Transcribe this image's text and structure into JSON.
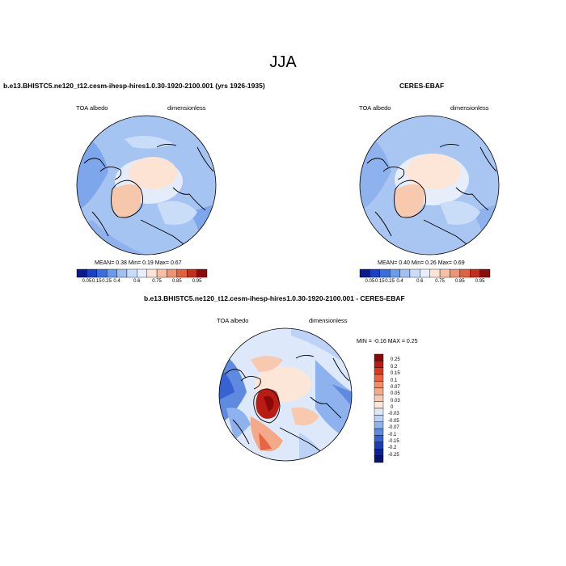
{
  "season": "JJA",
  "panels": {
    "model": {
      "title": "b.e13.BHISTC5.ne120_t12.cesm-ihesp-hires1.0.30-1920-2100.001 (yrs 1926-1935)",
      "variable": "TOA albedo",
      "units": "dimensionless",
      "stats": "MEAN=  0.38  Min=  0.19  Max=  0.67"
    },
    "obs": {
      "title": "CERES-EBAF",
      "variable": "TOA albedo",
      "units": "dimensionless",
      "stats": "MEAN=  0.40  Min=  0.26  Max=  0.69"
    },
    "diff": {
      "title": "b.e13.BHISTC5.ne120_t12.cesm-ihesp-hires1.0.30-1920-2100.001 - CERES-EBAF",
      "variable": "TOA albedo",
      "units": "dimensionless",
      "stats": "MIN =  -0.16 MAX =   0.25"
    }
  },
  "colorbar_abs": {
    "labels": [
      "0.05",
      "0.15",
      "0.25",
      "0.4",
      "0.6",
      "0.75",
      "0.85",
      "0.95"
    ],
    "colors": [
      "#0a1a8c",
      "#1c3fc8",
      "#3a6ee0",
      "#6a9aee",
      "#a0c0f4",
      "#c9dcf8",
      "#e6eefc",
      "#fbe3d6",
      "#f5c0a4",
      "#ee9474",
      "#e0623e",
      "#c0301c",
      "#8c0c0c"
    ]
  },
  "colorbar_diff": {
    "labels": [
      "0.25",
      "0.2",
      "0.15",
      "0.1",
      "0.07",
      "0.05",
      "0.03",
      "0",
      "-0.03",
      "-0.05",
      "-0.07",
      "-0.1",
      "-0.15",
      "-0.2",
      "-0.25"
    ],
    "colors": [
      "#8a0808",
      "#b81c12",
      "#d43c22",
      "#e86444",
      "#f08c68",
      "#f4aa88",
      "#f8c9ae",
      "#fce6d8",
      "#dde9fb",
      "#bcd2f6",
      "#8eb2ee",
      "#5e8ae0",
      "#3564d2",
      "#1c40b4",
      "#0c2490",
      "#061470"
    ]
  }
}
